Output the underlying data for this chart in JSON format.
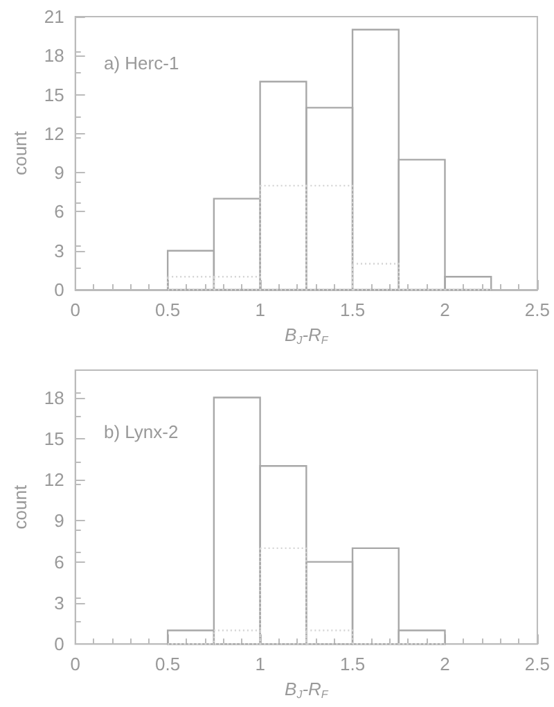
{
  "chart_data": [
    {
      "type": "histogram",
      "title": "a) Herc-1",
      "xlabel": "B$_{J}$-R$_{F}$",
      "ylabel": "count",
      "bins": [
        0.5,
        0.75,
        1,
        1.25,
        1.5,
        1.75,
        2,
        2.25
      ],
      "series": [
        {
          "color": "#a8a8a8",
          "line_style": "solid",
          "values": [
            3,
            7,
            16,
            14,
            20,
            10,
            1
          ]
        },
        {
          "color": "#d4d4d4",
          "line_style": "dotted",
          "values": [
            1,
            1,
            8,
            8,
            2,
            0,
            0
          ]
        }
      ],
      "xlim": [
        0,
        2.5
      ],
      "xticks": [
        0,
        0.5,
        1,
        1.5,
        2,
        2.5
      ],
      "ylim": [
        0,
        21
      ],
      "yticks": [
        0,
        3,
        6,
        9,
        12,
        15,
        18,
        21
      ]
    },
    {
      "type": "histogram",
      "title": "b) Lynx-2",
      "xlabel": "B$_{J}$-R$_{F}$",
      "ylabel": "count",
      "bins": [
        0.5,
        0.75,
        1,
        1.25,
        1.5,
        1.75,
        2
      ],
      "series": [
        {
          "color": "#a8a8a8",
          "line_style": "solid",
          "values": [
            1,
            18,
            13,
            6,
            7,
            1
          ]
        },
        {
          "color": "#d4d4d4",
          "line_style": "dotted",
          "values": [
            0,
            1,
            7,
            1,
            0,
            0
          ]
        }
      ],
      "xlim": [
        0,
        2.5
      ],
      "xticks": [
        0,
        0.5,
        1,
        1.5,
        2,
        2.5
      ],
      "ylim": [
        0,
        20
      ],
      "yticks": [
        0,
        3,
        6,
        9,
        12,
        15,
        18
      ]
    }
  ]
}
